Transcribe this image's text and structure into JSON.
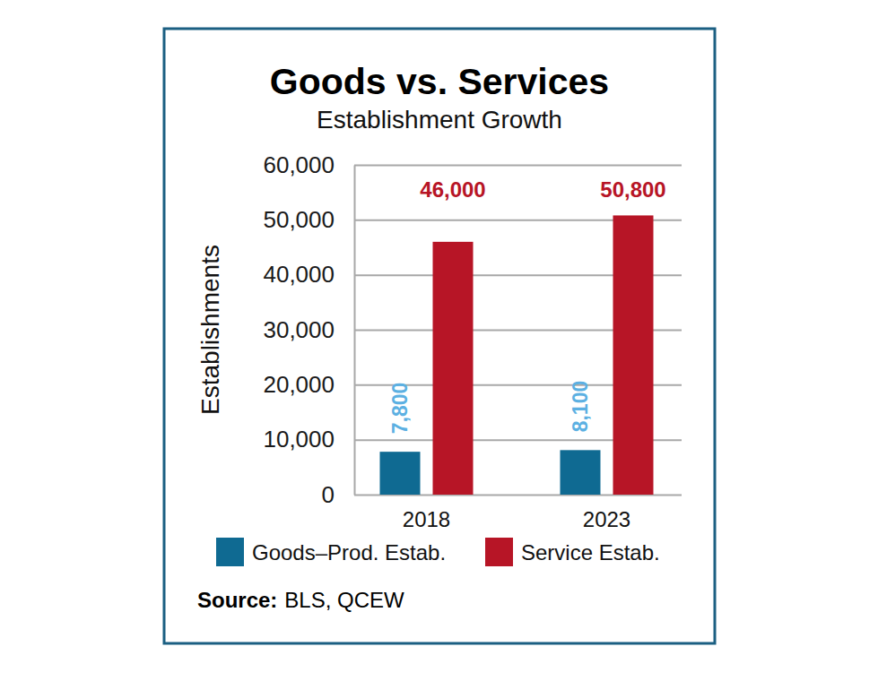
{
  "chart_data": {
    "type": "bar",
    "title": "Goods vs. Services",
    "subtitle": "Establishment Growth",
    "y_label": "Establishments",
    "categories": [
      "2018",
      "2023"
    ],
    "series": [
      {
        "name": "Goods–Prod. Estab.",
        "color": "#0f6a92",
        "values": [
          7800,
          8100
        ],
        "value_labels": [
          "7,800",
          "8,100"
        ]
      },
      {
        "name": "Service Estab.",
        "color": "#b71526",
        "values": [
          46000,
          50800
        ],
        "value_labels": [
          "46,000",
          "50,800"
        ]
      }
    ],
    "ylim": [
      0,
      60000
    ],
    "yticks": [
      0,
      {
        "value": 10000,
        "label": "10,000"
      },
      {
        "value": 20000,
        "label": "20,000"
      },
      {
        "value": 30000,
        "label": "30,000"
      },
      {
        "value": 40000,
        "label": "40,000"
      },
      {
        "value": 50000,
        "label": "50,000"
      },
      {
        "value": 60000,
        "label": "60,000"
      }
    ],
    "grid": true,
    "data_labels": true,
    "legend": "bottom",
    "source_label": "Source:",
    "source": "BLS, QCEW"
  }
}
